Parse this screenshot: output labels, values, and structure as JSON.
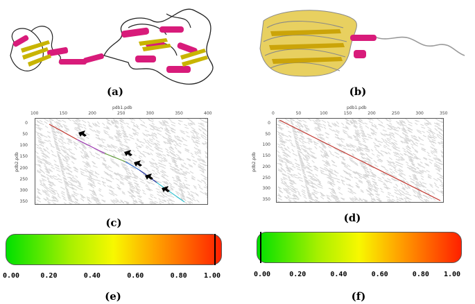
{
  "panels": {
    "a": {
      "label": "(a)"
    },
    "b": {
      "label": "(b)"
    },
    "c": {
      "label": "(c)",
      "top_title": "pdb1.pdb",
      "left_title": "pdb2.pdb",
      "x_ticks": [
        "100",
        "150",
        "200",
        "250",
        "300",
        "350",
        "400"
      ],
      "y_ticks": [
        "0",
        "50",
        "100",
        "150",
        "200",
        "250",
        "300",
        "350"
      ]
    },
    "d": {
      "label": "(d)",
      "top_title": "pdb1.pdb",
      "left_title": "pdb2.pdb",
      "x_ticks": [
        "0",
        "50",
        "100",
        "150",
        "200",
        "250",
        "300",
        "350"
      ],
      "y_ticks": [
        "0",
        "50",
        "100",
        "150",
        "200",
        "250",
        "300",
        "350"
      ]
    },
    "e": {
      "label": "(e)",
      "ticks": [
        "0.00",
        "0.20",
        "0.40",
        "0.60",
        "0.80",
        "1.00"
      ],
      "marker_value": 1.0
    },
    "f": {
      "label": "(f)",
      "ticks": [
        "0.00",
        "0.20",
        "0.40",
        "0.60",
        "0.80",
        "1.00"
      ],
      "marker_value": 0.0
    }
  },
  "colors": {
    "helix": "#d81b7a",
    "sheet": "#c8b400",
    "sheet_light": "#f0d040",
    "coil": "#222222",
    "coil_grey": "#888888",
    "dot_grey": "#d4d4d4",
    "diag_red": "#c0322a"
  }
}
